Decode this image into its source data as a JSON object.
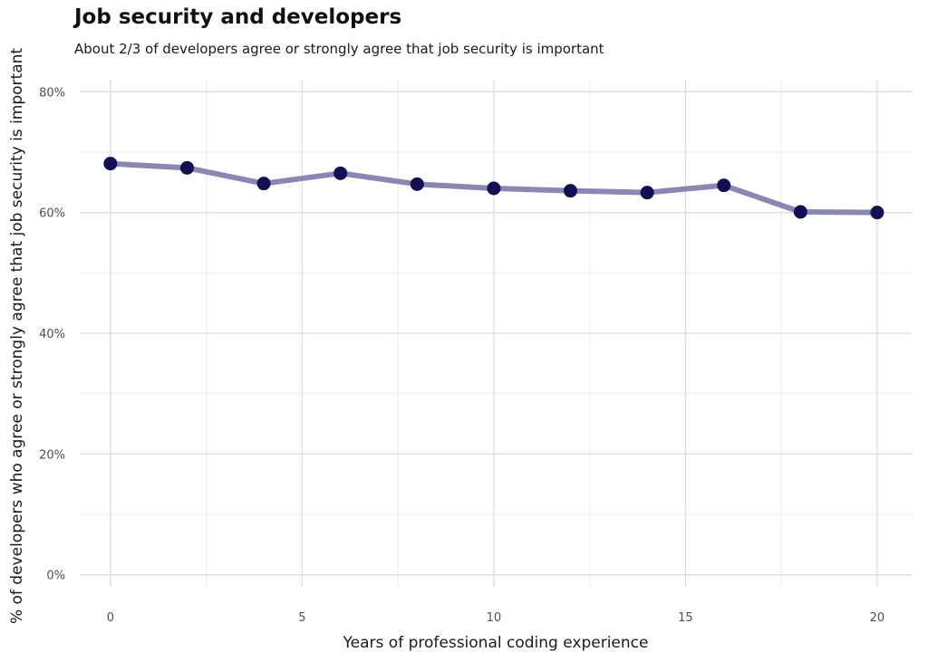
{
  "chart_data": {
    "type": "line",
    "title": "Job security and developers",
    "subtitle": "About 2/3 of developers agree or strongly agree that job security is important",
    "xlabel": "Years of professional coding experience",
    "ylabel": "% of developers who agree or strongly agree that job security is important",
    "xlim": [
      -0.8,
      20.9
    ],
    "ylim": [
      -0.02,
      0.82
    ],
    "x_ticks": [
      0,
      5,
      10,
      15,
      20
    ],
    "x_tick_labels": [
      "0",
      "5",
      "10",
      "15",
      "20"
    ],
    "y_ticks": [
      0,
      0.2,
      0.4,
      0.6,
      0.8
    ],
    "y_tick_labels": [
      "0%",
      "20%",
      "40%",
      "60%",
      "80%"
    ],
    "grid": true,
    "legend": "none",
    "line_color": "#8b87b3",
    "point_color": "#120f52",
    "series": [
      {
        "x": [
          0,
          2,
          4,
          6,
          8,
          10,
          12,
          14,
          16,
          18,
          20
        ],
        "y": [
          0.681,
          0.674,
          0.648,
          0.665,
          0.647,
          0.64,
          0.636,
          0.633,
          0.645,
          0.601,
          0.6
        ]
      }
    ]
  }
}
